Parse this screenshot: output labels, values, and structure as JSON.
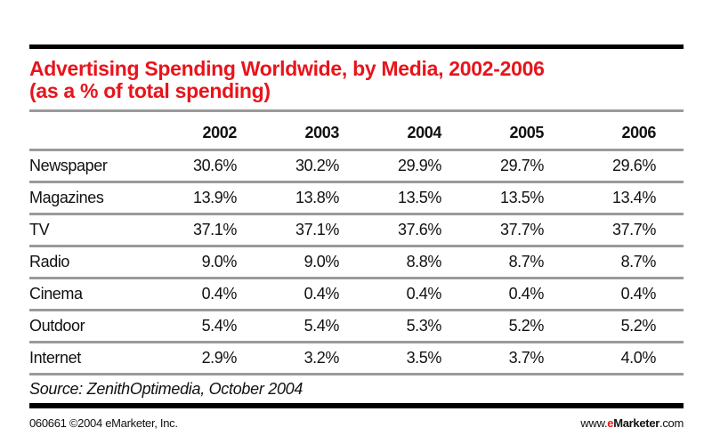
{
  "chart_data": {
    "type": "table",
    "title": "Advertising Spending Worldwide, by Media, 2002-2006",
    "subtitle": "(as a % of total spending)",
    "columns": [
      "2002",
      "2003",
      "2004",
      "2005",
      "2006"
    ],
    "rows": [
      {
        "label": "Newspaper",
        "values": [
          "30.6%",
          "30.2%",
          "29.9%",
          "29.7%",
          "29.6%"
        ]
      },
      {
        "label": "Magazines",
        "values": [
          "13.9%",
          "13.8%",
          "13.5%",
          "13.5%",
          "13.4%"
        ]
      },
      {
        "label": "TV",
        "values": [
          "37.1%",
          "37.1%",
          "37.6%",
          "37.7%",
          "37.7%"
        ]
      },
      {
        "label": "Radio",
        "values": [
          "9.0%",
          "9.0%",
          "8.8%",
          "8.7%",
          "8.7%"
        ]
      },
      {
        "label": "Cinema",
        "values": [
          "0.4%",
          "0.4%",
          "0.4%",
          "0.4%",
          "0.4%"
        ]
      },
      {
        "label": "Outdoor",
        "values": [
          "5.4%",
          "5.4%",
          "5.3%",
          "5.2%",
          "5.2%"
        ]
      },
      {
        "label": "Internet",
        "values": [
          "2.9%",
          "3.2%",
          "3.5%",
          "3.7%",
          "4.0%"
        ]
      }
    ],
    "source": "Source: ZenithOptimedia, October 2004"
  },
  "footer": {
    "left": "060661 ©2004 eMarketer, Inc.",
    "brand_prefix": "www.",
    "brand_e": "e",
    "brand_name": "Marketer",
    "brand_suffix": ".com"
  },
  "colors": {
    "title": "#e8141b",
    "rules": "#9a9a9a"
  }
}
